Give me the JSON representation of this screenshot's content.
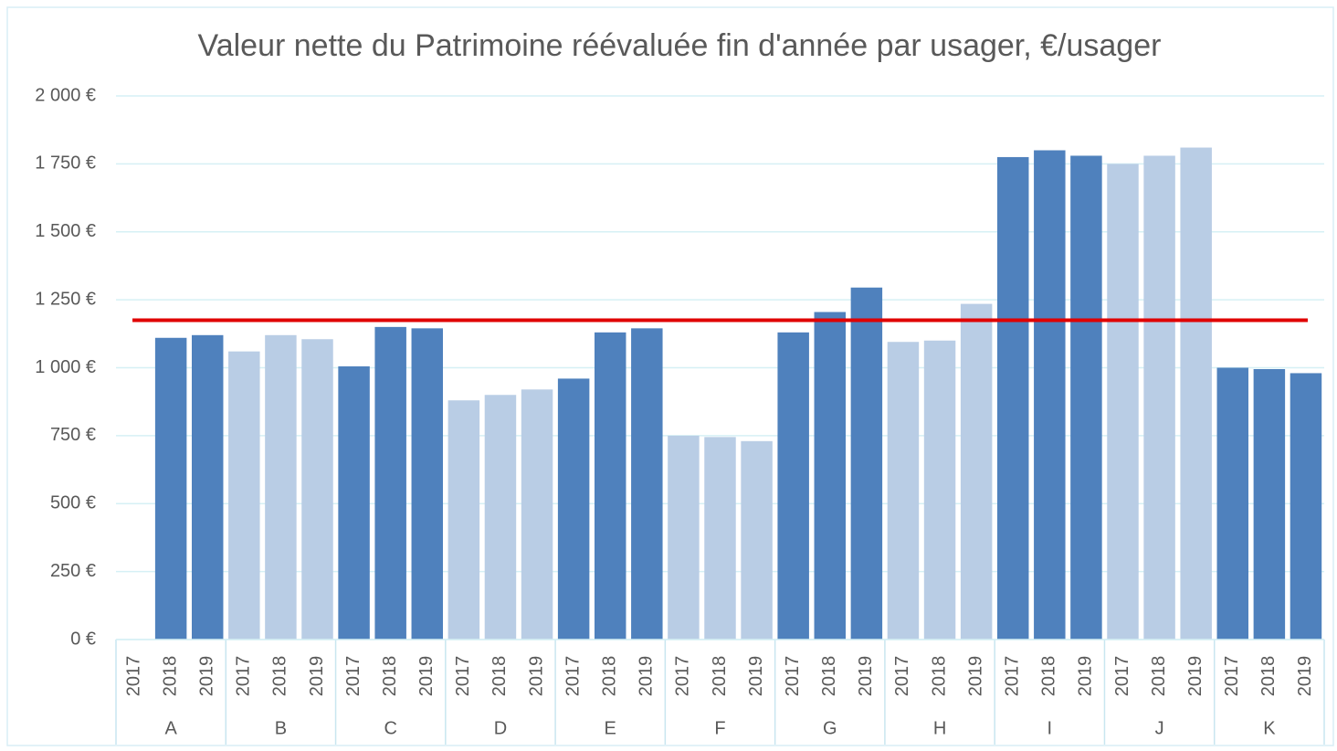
{
  "chart_data": {
    "type": "bar",
    "title": "Valeur nette du Patrimoine réévaluée fin d'année par usager, €/usager",
    "groups": [
      {
        "name": "A",
        "years": [
          "2017",
          "2018",
          "2019"
        ],
        "values": [
          null,
          1110,
          1120
        ],
        "color": "#4f81bd"
      },
      {
        "name": "B",
        "years": [
          "2017",
          "2018",
          "2019"
        ],
        "values": [
          1060,
          1120,
          1105
        ],
        "color": "#b9cde5"
      },
      {
        "name": "C",
        "years": [
          "2017",
          "2018",
          "2019"
        ],
        "values": [
          1005,
          1150,
          1145
        ],
        "color": "#4f81bd"
      },
      {
        "name": "D",
        "years": [
          "2017",
          "2018",
          "2019"
        ],
        "values": [
          880,
          900,
          920
        ],
        "color": "#b9cde5"
      },
      {
        "name": "E",
        "years": [
          "2017",
          "2018",
          "2019"
        ],
        "values": [
          960,
          1130,
          1145
        ],
        "color": "#4f81bd"
      },
      {
        "name": "F",
        "years": [
          "2017",
          "2018",
          "2019"
        ],
        "values": [
          750,
          745,
          730
        ],
        "color": "#b9cde5"
      },
      {
        "name": "G",
        "years": [
          "2017",
          "2018",
          "2019"
        ],
        "values": [
          1130,
          1205,
          1295
        ],
        "color": "#4f81bd"
      },
      {
        "name": "H",
        "years": [
          "2017",
          "2018",
          "2019"
        ],
        "values": [
          1095,
          1100,
          1235
        ],
        "color": "#b9cde5"
      },
      {
        "name": "I",
        "years": [
          "2017",
          "2018",
          "2019"
        ],
        "values": [
          1775,
          1800,
          1780
        ],
        "color": "#4f81bd"
      },
      {
        "name": "J",
        "years": [
          "2017",
          "2018",
          "2019"
        ],
        "values": [
          1750,
          1780,
          1810
        ],
        "color": "#b9cde5"
      },
      {
        "name": "K",
        "years": [
          "2017",
          "2018",
          "2019"
        ],
        "values": [
          1000,
          995,
          980
        ],
        "color": "#4f81bd"
      }
    ],
    "reference_line": {
      "value": 1175,
      "color": "#e00000"
    },
    "ylim": [
      0,
      2000
    ],
    "yticks": [
      {
        "value": 0,
        "label": "0 €"
      },
      {
        "value": 250,
        "label": "250 €"
      },
      {
        "value": 500,
        "label": "500 €"
      },
      {
        "value": 750,
        "label": "750 €"
      },
      {
        "value": 1000,
        "label": "1 000 €"
      },
      {
        "value": 1250,
        "label": "1 250 €"
      },
      {
        "value": 1500,
        "label": "1 500 €"
      },
      {
        "value": 1750,
        "label": "1 750 €"
      },
      {
        "value": 2000,
        "label": "2 000 €"
      }
    ],
    "grid": true
  }
}
